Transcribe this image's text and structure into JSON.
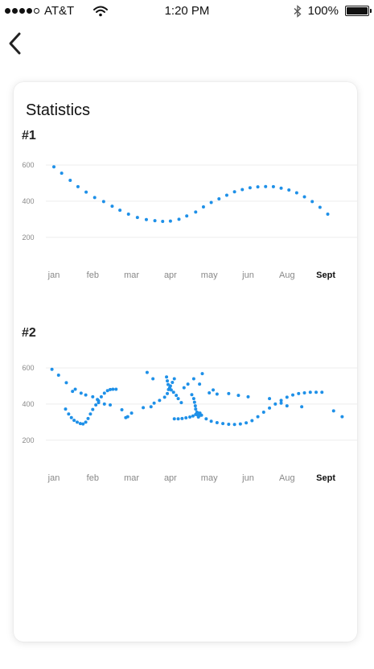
{
  "status_bar": {
    "carrier": "AT&T",
    "time": "1:20 PM",
    "battery": "100%",
    "signal_bars": 4,
    "signal_max": 5
  },
  "screen": {
    "title": "Statistics",
    "accent_color": "#1e90e8"
  },
  "chart_data": [
    {
      "type": "scatter",
      "title": "#1",
      "categories": [
        "jan",
        "feb",
        "mar",
        "apr",
        "may",
        "jun",
        "Aug",
        "Sept"
      ],
      "highlighted_category": "Sept",
      "yticks": [
        200,
        400,
        600
      ],
      "ylim": [
        150,
        640
      ],
      "grid": true,
      "series": [
        {
          "color": "#1e90e8",
          "points": [
            [
              0.0,
              590
            ],
            [
              0.2,
              555
            ],
            [
              0.42,
              515
            ],
            [
              0.62,
              480
            ],
            [
              0.83,
              450
            ],
            [
              1.05,
              420
            ],
            [
              1.28,
              398
            ],
            [
              1.5,
              372
            ],
            [
              1.7,
              350
            ],
            [
              1.92,
              328
            ],
            [
              2.15,
              310
            ],
            [
              2.38,
              298
            ],
            [
              2.6,
              292
            ],
            [
              2.8,
              288
            ],
            [
              3.0,
              290
            ],
            [
              3.22,
              300
            ],
            [
              3.42,
              318
            ],
            [
              3.65,
              340
            ],
            [
              3.85,
              368
            ],
            [
              4.05,
              393
            ],
            [
              4.25,
              413
            ],
            [
              4.45,
              433
            ],
            [
              4.65,
              452
            ],
            [
              4.85,
              464
            ],
            [
              5.05,
              474
            ],
            [
              5.25,
              479
            ],
            [
              5.45,
              481
            ],
            [
              5.65,
              480
            ],
            [
              5.85,
              472
            ],
            [
              6.05,
              462
            ],
            [
              6.25,
              446
            ],
            [
              6.45,
              424
            ],
            [
              6.65,
              398
            ],
            [
              6.85,
              366
            ],
            [
              7.05,
              328
            ]
          ]
        }
      ]
    },
    {
      "type": "scatter",
      "title": "#2",
      "categories": [
        "jan",
        "feb",
        "mar",
        "apr",
        "may",
        "jun",
        "Aug",
        "Sept"
      ],
      "highlighted_category": "Sept",
      "yticks": [
        200,
        400,
        600
      ],
      "ylim": [
        150,
        640
      ],
      "grid": true,
      "series": [
        {
          "color": "#1e90e8",
          "points": [
            [
              -0.05,
              592
            ],
            [
              0.12,
              560
            ],
            [
              0.32,
              518
            ],
            [
              0.48,
              470
            ],
            [
              0.55,
              482
            ],
            [
              0.7,
              460
            ],
            [
              0.82,
              450
            ],
            [
              1.0,
              440
            ],
            [
              1.12,
              425
            ],
            [
              1.15,
              408
            ],
            [
              1.3,
              400
            ],
            [
              1.45,
              395
            ],
            [
              0.3,
              372
            ],
            [
              0.38,
              345
            ],
            [
              0.45,
              325
            ],
            [
              0.52,
              310
            ],
            [
              0.6,
              300
            ],
            [
              0.68,
              292
            ],
            [
              0.75,
              290
            ],
            [
              0.82,
              300
            ],
            [
              0.88,
              320
            ],
            [
              0.94,
              345
            ],
            [
              1.0,
              370
            ],
            [
              1.08,
              395
            ],
            [
              1.15,
              418
            ],
            [
              1.22,
              440
            ],
            [
              1.3,
              460
            ],
            [
              1.38,
              474
            ],
            [
              1.45,
              480
            ],
            [
              1.52,
              482
            ],
            [
              1.6,
              482
            ],
            [
              1.75,
              368
            ],
            [
              1.85,
              325
            ],
            [
              1.9,
              330
            ],
            [
              2.0,
              350
            ],
            [
              2.3,
              380
            ],
            [
              2.4,
              575
            ],
            [
              2.55,
              540
            ],
            [
              2.5,
              385
            ],
            [
              2.58,
              405
            ],
            [
              2.72,
              420
            ],
            [
              2.85,
              438
            ],
            [
              2.92,
              458
            ],
            [
              2.95,
              480
            ],
            [
              3.0,
              500
            ],
            [
              3.05,
              520
            ],
            [
              3.1,
              540
            ],
            [
              2.9,
              550
            ],
            [
              2.92,
              528
            ],
            [
              2.94,
              508
            ],
            [
              2.98,
              490
            ],
            [
              3.02,
              478
            ],
            [
              3.08,
              465
            ],
            [
              3.15,
              448
            ],
            [
              3.2,
              430
            ],
            [
              3.28,
              408
            ],
            [
              3.35,
              490
            ],
            [
              3.45,
              510
            ],
            [
              3.55,
              452
            ],
            [
              3.6,
              430
            ],
            [
              3.62,
              410
            ],
            [
              3.64,
              390
            ],
            [
              3.65,
              372
            ],
            [
              3.68,
              355
            ],
            [
              3.7,
              340
            ],
            [
              3.72,
              328
            ],
            [
              3.74,
              335
            ],
            [
              3.76,
              350
            ],
            [
              3.6,
              540
            ],
            [
              3.75,
              510
            ],
            [
              3.82,
              568
            ],
            [
              3.1,
              318
            ],
            [
              3.2,
              318
            ],
            [
              3.3,
              320
            ],
            [
              3.4,
              324
            ],
            [
              3.5,
              328
            ],
            [
              3.58,
              334
            ],
            [
              3.65,
              342
            ],
            [
              3.72,
              350
            ],
            [
              3.8,
              338
            ],
            [
              3.92,
              318
            ],
            [
              4.05,
              305
            ],
            [
              4.2,
              297
            ],
            [
              4.35,
              292
            ],
            [
              4.5,
              288
            ],
            [
              4.65,
              287
            ],
            [
              4.8,
              290
            ],
            [
              4.95,
              296
            ],
            [
              5.1,
              308
            ],
            [
              5.25,
              330
            ],
            [
              5.4,
              355
            ],
            [
              5.55,
              378
            ],
            [
              5.7,
              400
            ],
            [
              5.85,
              420
            ],
            [
              6.0,
              438
            ],
            [
              6.15,
              450
            ],
            [
              6.3,
              458
            ],
            [
              6.45,
              462
            ],
            [
              6.6,
              465
            ],
            [
              6.75,
              465
            ],
            [
              6.9,
              465
            ],
            [
              5.0,
              440
            ],
            [
              4.75,
              448
            ],
            [
              4.5,
              458
            ],
            [
              4.2,
              455
            ],
            [
              6.38,
              385
            ],
            [
              6.0,
              390
            ],
            [
              5.85,
              405
            ],
            [
              5.55,
              430
            ],
            [
              4.0,
              462
            ],
            [
              4.1,
              478
            ],
            [
              7.2,
              362
            ],
            [
              7.42,
              330
            ]
          ]
        }
      ]
    }
  ]
}
